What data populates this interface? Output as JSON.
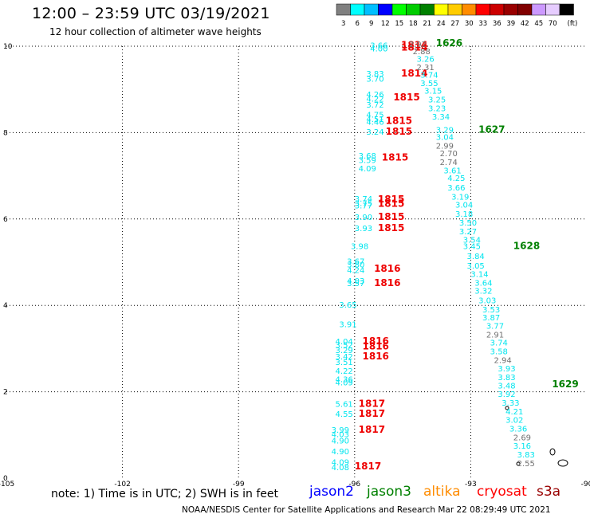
{
  "header": {
    "title": "12:00 – 23:59 UTC 03/19/2021",
    "subtitle": "12 hour collection of altimeter wave heights"
  },
  "colorbar": {
    "unit_label": "(ft)",
    "bins": [
      {
        "label": "3",
        "color": "#808080"
      },
      {
        "label": "6",
        "color": "#00ffff"
      },
      {
        "label": "9",
        "color": "#00bfff"
      },
      {
        "label": "12",
        "color": "#0000ff"
      },
      {
        "label": "15",
        "color": "#00ff00"
      },
      {
        "label": "18",
        "color": "#00cc00"
      },
      {
        "label": "21",
        "color": "#008000"
      },
      {
        "label": "24",
        "color": "#ffff00"
      },
      {
        "label": "27",
        "color": "#ffcc00"
      },
      {
        "label": "30",
        "color": "#ff8c00"
      },
      {
        "label": "33",
        "color": "#ff0000"
      },
      {
        "label": "36",
        "color": "#cc0000"
      },
      {
        "label": "39",
        "color": "#990000"
      },
      {
        "label": "42",
        "color": "#800000"
      },
      {
        "label": "45",
        "color": "#cc99ff"
      },
      {
        "label": "70",
        "color": "#e6ccff"
      },
      {
        "label": "",
        "color": "#000000"
      }
    ]
  },
  "footer": {
    "note": "note:  1) Time is in UTC;  2) SWH is in feet",
    "credit": "NOAA/NESDIS Center for Satellite Applications and Research      Mar 22 08:29:49 UTC 2021",
    "satellites": [
      {
        "name": "jason2",
        "color": "#0000ff"
      },
      {
        "name": "jason3",
        "color": "#008000"
      },
      {
        "name": "altika",
        "color": "#ff8c00"
      },
      {
        "name": "cryosat",
        "color": "#ff0000"
      },
      {
        "name": "s3a",
        "color": "#990000"
      }
    ]
  },
  "chart_data": {
    "type": "scatter",
    "xlim": [
      -105,
      -90
    ],
    "ylim": [
      0,
      10
    ],
    "x_ticks": [
      "-105",
      "-102",
      "-99",
      "-96",
      "-93",
      "-90"
    ],
    "y_ticks": [
      "0",
      "2",
      "4",
      "6",
      "8",
      "10"
    ],
    "grid": "dotted",
    "swh_labels": [
      {
        "lon": -95.6,
        "lat": 9.95,
        "text": "3.66",
        "color": "#00e5ee"
      },
      {
        "lon": -95.6,
        "lat": 9.88,
        "text": "4.00",
        "color": "#00e5ee"
      },
      {
        "lon": -95.7,
        "lat": 9.3,
        "text": "3.83",
        "color": "#00e5ee"
      },
      {
        "lon": -95.7,
        "lat": 9.18,
        "text": "3.70",
        "color": "#00e5ee"
      },
      {
        "lon": -95.7,
        "lat": 8.82,
        "text": "4.26",
        "color": "#00e5ee"
      },
      {
        "lon": -95.7,
        "lat": 8.72,
        "text": "4.22",
        "color": "#00e5ee"
      },
      {
        "lon": -95.7,
        "lat": 8.58,
        "text": "3.72",
        "color": "#00e5ee"
      },
      {
        "lon": -95.7,
        "lat": 8.35,
        "text": "4.75",
        "color": "#00e5ee"
      },
      {
        "lon": -95.7,
        "lat": 8.25,
        "text": "4.51",
        "color": "#00e5ee"
      },
      {
        "lon": -95.7,
        "lat": 8.18,
        "text": "4.46",
        "color": "#00e5ee"
      },
      {
        "lon": -95.7,
        "lat": 7.95,
        "text": "3.24",
        "color": "#00e5ee"
      },
      {
        "lon": -95.9,
        "lat": 7.4,
        "text": "3.68",
        "color": "#00e5ee"
      },
      {
        "lon": -95.9,
        "lat": 7.3,
        "text": "3.59",
        "color": "#00e5ee"
      },
      {
        "lon": -95.9,
        "lat": 7.1,
        "text": "4.09",
        "color": "#00e5ee"
      },
      {
        "lon": -96.0,
        "lat": 6.4,
        "text": "3.74",
        "color": "#00e5ee"
      },
      {
        "lon": -96.0,
        "lat": 6.3,
        "text": "3.75",
        "color": "#00e5ee"
      },
      {
        "lon": -96.0,
        "lat": 6.25,
        "text": "3.77",
        "color": "#00e5ee"
      },
      {
        "lon": -96.0,
        "lat": 5.98,
        "text": "3.90",
        "color": "#00e5ee"
      },
      {
        "lon": -96.0,
        "lat": 5.72,
        "text": "3.93",
        "color": "#00e5ee"
      },
      {
        "lon": -96.1,
        "lat": 5.3,
        "text": "3.98",
        "color": "#00e5ee"
      },
      {
        "lon": -96.2,
        "lat": 4.95,
        "text": "3.67",
        "color": "#00e5ee"
      },
      {
        "lon": -96.2,
        "lat": 4.88,
        "text": "3.80",
        "color": "#00e5ee"
      },
      {
        "lon": -96.2,
        "lat": 4.75,
        "text": "4.24",
        "color": "#00e5ee"
      },
      {
        "lon": -96.2,
        "lat": 4.5,
        "text": "4.03",
        "color": "#00e5ee"
      },
      {
        "lon": -96.2,
        "lat": 4.45,
        "text": "3.57",
        "color": "#00e5ee"
      },
      {
        "lon": -96.4,
        "lat": 3.95,
        "text": "3.65",
        "color": "#00e5ee"
      },
      {
        "lon": -96.4,
        "lat": 3.5,
        "text": "3.91",
        "color": "#00e5ee"
      },
      {
        "lon": -96.5,
        "lat": 3.1,
        "text": "4.04",
        "color": "#00e5ee"
      },
      {
        "lon": -96.5,
        "lat": 3.02,
        "text": "3.52",
        "color": "#00e5ee"
      },
      {
        "lon": -96.5,
        "lat": 2.9,
        "text": "3.29",
        "color": "#00e5ee"
      },
      {
        "lon": -96.5,
        "lat": 2.75,
        "text": "3.42",
        "color": "#00e5ee"
      },
      {
        "lon": -96.5,
        "lat": 2.62,
        "text": "3.51",
        "color": "#00e5ee"
      },
      {
        "lon": -96.5,
        "lat": 2.42,
        "text": "4.22",
        "color": "#00e5ee"
      },
      {
        "lon": -96.5,
        "lat": 2.22,
        "text": "4.36",
        "color": "#00e5ee"
      },
      {
        "lon": -96.5,
        "lat": 2.15,
        "text": "4.09",
        "color": "#00e5ee"
      },
      {
        "lon": -96.5,
        "lat": 1.65,
        "text": "5.61",
        "color": "#00e5ee"
      },
      {
        "lon": -96.5,
        "lat": 1.42,
        "text": "4.55",
        "color": "#00e5ee"
      },
      {
        "lon": -96.6,
        "lat": 1.05,
        "text": "3.99",
        "color": "#00e5ee"
      },
      {
        "lon": -96.6,
        "lat": 0.95,
        "text": "4.03",
        "color": "#00e5ee"
      },
      {
        "lon": -96.6,
        "lat": 0.8,
        "text": "4.90",
        "color": "#00e5ee"
      },
      {
        "lon": -96.6,
        "lat": 0.55,
        "text": "4.90",
        "color": "#00e5ee"
      },
      {
        "lon": -96.6,
        "lat": 0.3,
        "text": "4.09",
        "color": "#00e5ee"
      },
      {
        "lon": -96.6,
        "lat": 0.18,
        "text": "4.08",
        "color": "#00e5ee"
      },
      {
        "lon": -94.8,
        "lat": 9.95,
        "text": "1814",
        "color": "#ee0000",
        "bold": true
      },
      {
        "lon": -94.8,
        "lat": 9.9,
        "text": "1814",
        "color": "#ee0000",
        "bold": true
      },
      {
        "lon": -94.8,
        "lat": 9.3,
        "text": "1814",
        "color": "#ee0000",
        "bold": true
      },
      {
        "lon": -95.0,
        "lat": 8.75,
        "text": "1815",
        "color": "#ee0000",
        "bold": true
      },
      {
        "lon": -95.2,
        "lat": 8.2,
        "text": "1815",
        "color": "#ee0000",
        "bold": true
      },
      {
        "lon": -95.2,
        "lat": 7.95,
        "text": "1815",
        "color": "#ee0000",
        "bold": true
      },
      {
        "lon": -95.3,
        "lat": 7.35,
        "text": "1815",
        "color": "#ee0000",
        "bold": true
      },
      {
        "lon": -95.4,
        "lat": 6.38,
        "text": "1815",
        "color": "#ee0000",
        "bold": true
      },
      {
        "lon": -95.4,
        "lat": 6.28,
        "text": "1815",
        "color": "#ee0000",
        "bold": true
      },
      {
        "lon": -95.4,
        "lat": 5.98,
        "text": "1815",
        "color": "#ee0000",
        "bold": true
      },
      {
        "lon": -95.4,
        "lat": 5.72,
        "text": "1815",
        "color": "#ee0000",
        "bold": true
      },
      {
        "lon": -95.5,
        "lat": 4.78,
        "text": "1816",
        "color": "#ee0000",
        "bold": true
      },
      {
        "lon": -95.5,
        "lat": 4.45,
        "text": "1816",
        "color": "#ee0000",
        "bold": true
      },
      {
        "lon": -95.8,
        "lat": 3.1,
        "text": "1816",
        "color": "#ee0000",
        "bold": true
      },
      {
        "lon": -95.8,
        "lat": 2.98,
        "text": "1816",
        "color": "#ee0000",
        "bold": true
      },
      {
        "lon": -95.8,
        "lat": 2.75,
        "text": "1816",
        "color": "#ee0000",
        "bold": true
      },
      {
        "lon": -95.9,
        "lat": 1.65,
        "text": "1817",
        "color": "#ee0000",
        "bold": true
      },
      {
        "lon": -95.9,
        "lat": 1.42,
        "text": "1817",
        "color": "#ee0000",
        "bold": true
      },
      {
        "lon": -95.9,
        "lat": 1.05,
        "text": "1817",
        "color": "#ee0000",
        "bold": true
      },
      {
        "lon": -96.0,
        "lat": 0.2,
        "text": "1817",
        "color": "#ee0000",
        "bold": true
      },
      {
        "lon": -94.6,
        "lat": 9.98,
        "text": "2.92",
        "color": "#707070"
      },
      {
        "lon": -94.5,
        "lat": 9.82,
        "text": "2.88",
        "color": "#707070"
      },
      {
        "lon": -94.4,
        "lat": 9.64,
        "text": "3.26",
        "color": "#00e5ee"
      },
      {
        "lon": -94.4,
        "lat": 9.45,
        "text": "2.31",
        "color": "#707070"
      },
      {
        "lon": -94.3,
        "lat": 9.27,
        "text": "3.74",
        "color": "#00e5ee"
      },
      {
        "lon": -94.3,
        "lat": 9.08,
        "text": "3.55",
        "color": "#00e5ee"
      },
      {
        "lon": -94.2,
        "lat": 8.9,
        "text": "3.15",
        "color": "#00e5ee"
      },
      {
        "lon": -94.1,
        "lat": 8.7,
        "text": "3.25",
        "color": "#00e5ee"
      },
      {
        "lon": -94.1,
        "lat": 8.5,
        "text": "3.23",
        "color": "#00e5ee"
      },
      {
        "lon": -94.0,
        "lat": 8.3,
        "text": "3.34",
        "color": "#00e5ee"
      },
      {
        "lon": -93.9,
        "lat": 8.0,
        "text": "3.29",
        "color": "#00e5ee"
      },
      {
        "lon": -93.9,
        "lat": 7.83,
        "text": "3.04",
        "color": "#00e5ee"
      },
      {
        "lon": -93.9,
        "lat": 7.63,
        "text": "2.99",
        "color": "#707070"
      },
      {
        "lon": -93.8,
        "lat": 7.45,
        "text": "2.70",
        "color": "#707070"
      },
      {
        "lon": -93.8,
        "lat": 7.25,
        "text": "2.74",
        "color": "#707070"
      },
      {
        "lon": -93.7,
        "lat": 7.06,
        "text": "3.61",
        "color": "#00e5ee"
      },
      {
        "lon": -93.6,
        "lat": 6.88,
        "text": "4.25",
        "color": "#00e5ee"
      },
      {
        "lon": -93.6,
        "lat": 6.66,
        "text": "3.66",
        "color": "#00e5ee"
      },
      {
        "lon": -93.5,
        "lat": 6.45,
        "text": "3.19",
        "color": "#00e5ee"
      },
      {
        "lon": -93.4,
        "lat": 6.26,
        "text": "3.04",
        "color": "#00e5ee"
      },
      {
        "lon": -93.4,
        "lat": 6.05,
        "text": "3.18",
        "color": "#00e5ee"
      },
      {
        "lon": -93.3,
        "lat": 5.85,
        "text": "3.50",
        "color": "#00e5ee"
      },
      {
        "lon": -93.3,
        "lat": 5.65,
        "text": "3.27",
        "color": "#00e5ee"
      },
      {
        "lon": -93.2,
        "lat": 5.45,
        "text": "3.54",
        "color": "#00e5ee"
      },
      {
        "lon": -93.2,
        "lat": 5.3,
        "text": "3.45",
        "color": "#00e5ee"
      },
      {
        "lon": -93.1,
        "lat": 5.07,
        "text": "3.84",
        "color": "#00e5ee"
      },
      {
        "lon": -93.1,
        "lat": 4.85,
        "text": "3.05",
        "color": "#00e5ee"
      },
      {
        "lon": -93.0,
        "lat": 4.66,
        "text": "3.14",
        "color": "#00e5ee"
      },
      {
        "lon": -92.9,
        "lat": 4.46,
        "text": "3.64",
        "color": "#00e5ee"
      },
      {
        "lon": -92.9,
        "lat": 4.27,
        "text": "3.32",
        "color": "#00e5ee"
      },
      {
        "lon": -92.8,
        "lat": 4.05,
        "text": "3.03",
        "color": "#00e5ee"
      },
      {
        "lon": -92.7,
        "lat": 3.84,
        "text": "3.53",
        "color": "#00e5ee"
      },
      {
        "lon": -92.7,
        "lat": 3.65,
        "text": "3.87",
        "color": "#00e5ee"
      },
      {
        "lon": -92.6,
        "lat": 3.46,
        "text": "3.77",
        "color": "#00e5ee"
      },
      {
        "lon": -92.6,
        "lat": 3.26,
        "text": "2.91",
        "color": "#707070"
      },
      {
        "lon": -92.5,
        "lat": 3.07,
        "text": "3.74",
        "color": "#00e5ee"
      },
      {
        "lon": -92.5,
        "lat": 2.87,
        "text": "3.58",
        "color": "#00e5ee"
      },
      {
        "lon": -92.4,
        "lat": 2.67,
        "text": "2.94",
        "color": "#707070"
      },
      {
        "lon": -92.3,
        "lat": 2.47,
        "text": "3.93",
        "color": "#00e5ee"
      },
      {
        "lon": -92.3,
        "lat": 2.27,
        "text": "3.83",
        "color": "#00e5ee"
      },
      {
        "lon": -92.3,
        "lat": 2.08,
        "text": "3.48",
        "color": "#00e5ee"
      },
      {
        "lon": -92.3,
        "lat": 1.88,
        "text": "3.92",
        "color": "#00e5ee"
      },
      {
        "lon": -92.2,
        "lat": 1.68,
        "text": "3.33",
        "color": "#00e5ee"
      },
      {
        "lon": -92.1,
        "lat": 1.48,
        "text": "4.21",
        "color": "#00e5ee"
      },
      {
        "lon": -92.1,
        "lat": 1.28,
        "text": "3.02",
        "color": "#00e5ee"
      },
      {
        "lon": -92.0,
        "lat": 1.08,
        "text": "3.36",
        "color": "#00e5ee"
      },
      {
        "lon": -91.9,
        "lat": 0.88,
        "text": "2.69",
        "color": "#707070"
      },
      {
        "lon": -91.9,
        "lat": 0.68,
        "text": "3.16",
        "color": "#00e5ee"
      },
      {
        "lon": -91.8,
        "lat": 0.48,
        "text": "3.83",
        "color": "#00e5ee"
      },
      {
        "lon": -91.8,
        "lat": 0.28,
        "text": "2.55",
        "color": "#707070"
      },
      {
        "lon": -93.9,
        "lat": 10.0,
        "text": "1626",
        "color": "#008000",
        "bold": true
      },
      {
        "lon": -92.8,
        "lat": 8.0,
        "text": "1627",
        "color": "#008000",
        "bold": true
      },
      {
        "lon": -91.9,
        "lat": 5.3,
        "text": "1628",
        "color": "#008000",
        "bold": true
      },
      {
        "lon": -90.9,
        "lat": 2.1,
        "text": "1629",
        "color": "#008000",
        "bold": true
      }
    ]
  }
}
